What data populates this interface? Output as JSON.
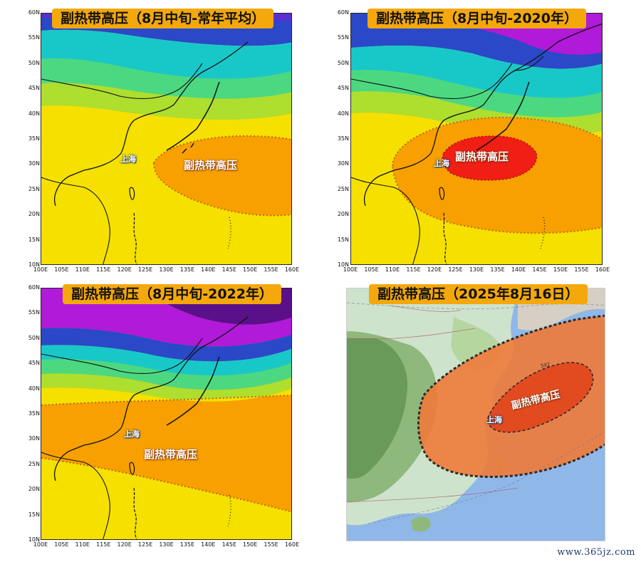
{
  "panels": [
    {
      "title": "副热带高压（8月中旬-常年平均）",
      "city_label": "上海",
      "high_label": "副热带高压"
    },
    {
      "title": "副热带高压（8月中旬-2020年）",
      "city_label": "上海",
      "high_label": "副热带高压"
    },
    {
      "title": "副热带高压（8月中旬-2022年）",
      "city_label": "上海",
      "high_label": "副热带高压"
    },
    {
      "title": "副热带高压（2025年8月16日）",
      "city_label": "上海",
      "high_label": "副热带高压",
      "contour_label": "592"
    }
  ],
  "axes": {
    "lat_ticks": [
      "60N",
      "55N",
      "50N",
      "45N",
      "40N",
      "35N",
      "30N",
      "25N",
      "20N",
      "15N",
      "10N"
    ],
    "lon_ticks": [
      "100E",
      "105E",
      "110E",
      "115E",
      "120E",
      "125E",
      "130E",
      "135E",
      "140E",
      "145E",
      "150E",
      "155E",
      "160E"
    ]
  },
  "colors": {
    "band_purple": "#b01ad8",
    "band_blue": "#2a48c8",
    "band_cyan": "#18c8c8",
    "band_green": "#4cd880",
    "band_lime": "#aede2e",
    "band_yellow": "#f5e000",
    "high_orange": "#f7a000",
    "high_core_red": "#f01e14",
    "real_high_orange": "#f07a3a",
    "real_core_red": "#e24a20"
  },
  "watermark": "www.365jz.com"
}
